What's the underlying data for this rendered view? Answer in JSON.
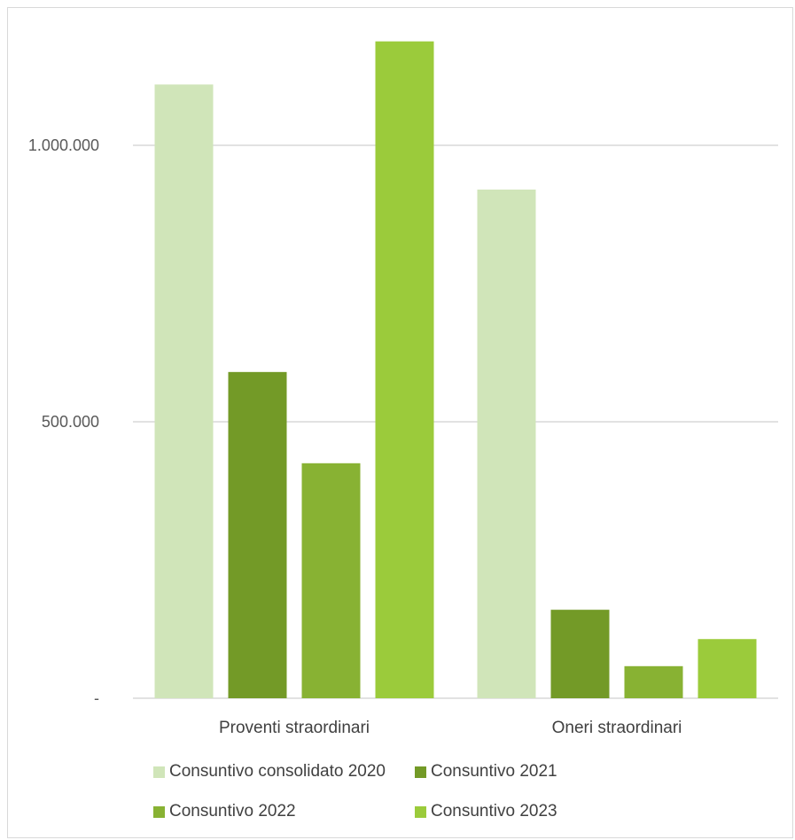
{
  "chart_data": {
    "type": "bar",
    "categories": [
      "Proventi straordinari",
      "Oneri straordinari"
    ],
    "series": [
      {
        "name": "Consuntivo consolidato 2020",
        "values": [
          1110000,
          920000
        ],
        "color": "#d0e5b9"
      },
      {
        "name": "Consuntivo 2021",
        "values": [
          590000,
          160000
        ],
        "color": "#739a27"
      },
      {
        "name": "Consuntivo 2022",
        "values": [
          425000,
          58000
        ],
        "color": "#88b233"
      },
      {
        "name": "Consuntivo 2023",
        "values": [
          1188000,
          107000
        ],
        "color": "#9bcb3b"
      }
    ],
    "ylim": [
      0,
      1000000
    ],
    "yticks": [
      {
        "value": 0,
        "label": "-"
      },
      {
        "value": 500000,
        "label": "500.000"
      },
      {
        "value": 1000000,
        "label": "1.000.000"
      }
    ],
    "grid": true,
    "legend_position": "bottom",
    "title": "",
    "xlabel": "",
    "ylabel": ""
  }
}
